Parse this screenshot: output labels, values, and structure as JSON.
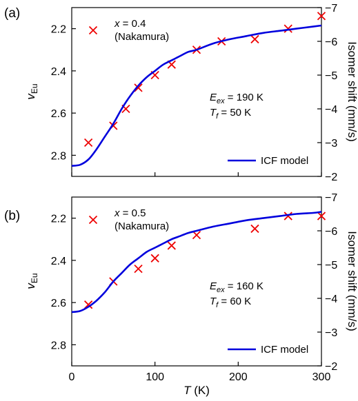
{
  "colors": {
    "model": "#0000dd",
    "data": "#ee0000"
  },
  "chart_data": [
    {
      "type": "line",
      "panel_label": "(a)",
      "xlim": [
        0,
        300
      ],
      "ylim": [
        2.9,
        2.1
      ],
      "ylim_right": [
        -2,
        -7
      ],
      "x_ticks": [
        0,
        100,
        200,
        300
      ],
      "y_ticks": [
        2.2,
        2.4,
        2.6,
        2.8
      ],
      "y_tick_labels": [
        "2.2",
        "2.4",
        "2.6",
        "2.8"
      ],
      "y2_ticks": [
        -2,
        -3,
        -4,
        -5,
        -6,
        -7
      ],
      "y2_tick_labels": [
        "−2",
        "−3",
        "−4",
        "−5",
        "−6",
        "−7"
      ],
      "ylabel_main": "v",
      "ylabel_sub": "Eu",
      "ylabel_right": "Isomer shift (mm/s)",
      "legend": {
        "label": "ICF model",
        "position": "lower-right"
      },
      "annotation": {
        "x_symbol": "x",
        "x_value": " = 0.4",
        "source": "(Nakamura)",
        "eex_symbol": "E",
        "eex_sub": "ex",
        "eex_value": " = 190  K",
        "tf_symbol": "T",
        "tf_sub": "f",
        "tf_value": " = 50 K"
      },
      "series": [
        {
          "kind": "scatter",
          "x": [
            20,
            50,
            65,
            80,
            100,
            120,
            150,
            180,
            220,
            260,
            300
          ],
          "y": [
            2.74,
            2.66,
            2.58,
            2.48,
            2.42,
            2.37,
            2.3,
            2.26,
            2.25,
            2.2,
            2.14
          ]
        },
        {
          "kind": "line",
          "name": "ICF model",
          "x": [
            0,
            10,
            20,
            30,
            40,
            50,
            60,
            70,
            80,
            90,
            100,
            110,
            120,
            130,
            140,
            150,
            170,
            190,
            210,
            230,
            250,
            270,
            290,
            300
          ],
          "y": [
            2.85,
            2.845,
            2.82,
            2.77,
            2.71,
            2.65,
            2.58,
            2.52,
            2.47,
            2.43,
            2.4,
            2.37,
            2.35,
            2.33,
            2.31,
            2.3,
            2.27,
            2.25,
            2.235,
            2.22,
            2.21,
            2.2,
            2.19,
            2.185
          ]
        }
      ]
    },
    {
      "type": "line",
      "panel_label": "(b)",
      "xlim": [
        0,
        300
      ],
      "ylim": [
        2.9,
        2.1
      ],
      "ylim_right": [
        -2,
        -7
      ],
      "x_ticks": [
        0,
        100,
        200,
        300
      ],
      "x_tick_labels": [
        "0",
        "100",
        "200",
        "300"
      ],
      "y_ticks": [
        2.2,
        2.4,
        2.6,
        2.8
      ],
      "y_tick_labels": [
        "2.2",
        "2.4",
        "2.6",
        "2.8"
      ],
      "y2_ticks": [
        -2,
        -3,
        -4,
        -5,
        -6,
        -7
      ],
      "y2_tick_labels": [
        "−2",
        "−3",
        "−4",
        "−5",
        "−6",
        "−7"
      ],
      "xlabel_symbol": "T",
      "xlabel_unit": " (K)",
      "ylabel_main": "v",
      "ylabel_sub": "Eu",
      "ylabel_right": "Isomer shift (mm/s)",
      "legend": {
        "label": "ICF model",
        "position": "lower-right"
      },
      "annotation": {
        "x_symbol": "x",
        "x_value": " = 0.5",
        "source": "(Nakamura)",
        "eex_symbol": "E",
        "eex_sub": "ex",
        "eex_value": " = 160  K",
        "tf_symbol": "T",
        "tf_sub": "f",
        "tf_value": " = 60 K"
      },
      "series": [
        {
          "kind": "scatter",
          "x": [
            20,
            50,
            80,
            100,
            120,
            150,
            220,
            260,
            300
          ],
          "y": [
            2.61,
            2.5,
            2.44,
            2.39,
            2.33,
            2.28,
            2.25,
            2.19,
            2.19
          ]
        },
        {
          "kind": "line",
          "name": "ICF model",
          "x": [
            0,
            10,
            20,
            30,
            40,
            50,
            60,
            70,
            80,
            90,
            100,
            110,
            120,
            130,
            140,
            150,
            170,
            190,
            210,
            230,
            250,
            270,
            290,
            300
          ],
          "y": [
            2.645,
            2.64,
            2.62,
            2.59,
            2.55,
            2.5,
            2.46,
            2.42,
            2.39,
            2.36,
            2.34,
            2.32,
            2.3,
            2.285,
            2.27,
            2.26,
            2.24,
            2.225,
            2.21,
            2.2,
            2.19,
            2.18,
            2.175,
            2.17
          ]
        }
      ]
    }
  ]
}
